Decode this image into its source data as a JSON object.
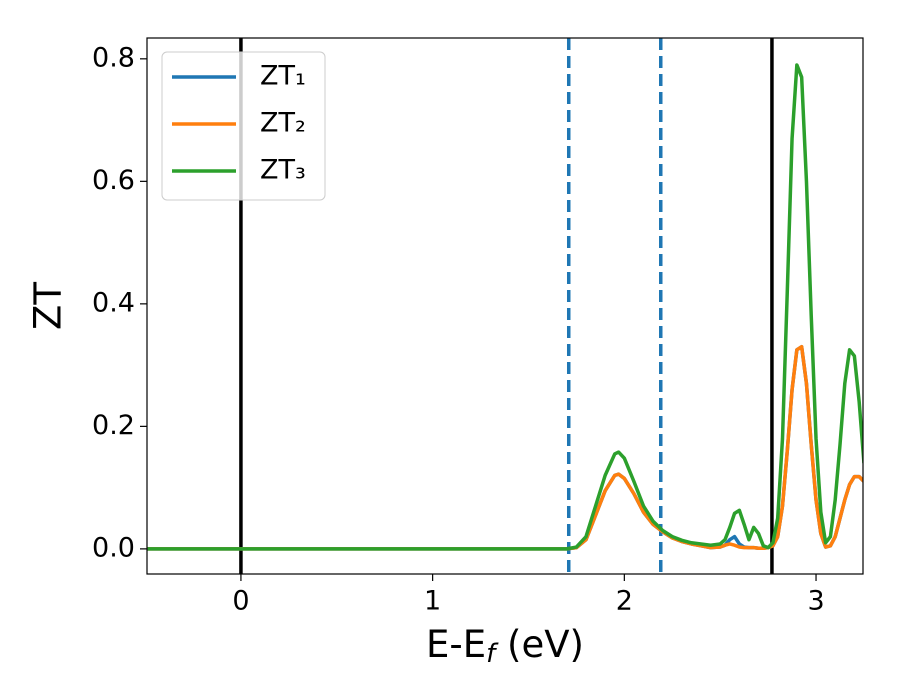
{
  "chart_data": {
    "type": "line",
    "xlabel": [
      "E-E",
      "f",
      " (eV)"
    ],
    "ylabel": "ZT",
    "xlim": [
      -0.49,
      3.245
    ],
    "ylim": [
      -0.041,
      0.834
    ],
    "xticks": [
      0,
      1,
      2,
      3
    ],
    "yticks": [
      {
        "value": 0,
        "label": "0.0"
      },
      0.2,
      0.4,
      0.6,
      0.8
    ],
    "legend": "upper left",
    "vlines": [
      {
        "x": 0,
        "color": "#000000",
        "style": "solid"
      },
      {
        "x": 1.71,
        "color": "#1f77b4",
        "style": "dashed"
      },
      {
        "x": 2.19,
        "color": "#1f77b4",
        "style": "dashed"
      },
      {
        "x": 2.77,
        "color": "#000000",
        "style": "solid"
      }
    ],
    "x": [
      -0.49,
      0,
      0.5,
      1,
      1.5,
      1.7,
      1.75,
      1.8,
      1.85,
      1.9,
      1.95,
      1.97,
      2.0,
      2.05,
      2.1,
      2.15,
      2.2,
      2.25,
      2.3,
      2.35,
      2.4,
      2.45,
      2.5,
      2.525,
      2.55,
      2.575,
      2.6,
      2.625,
      2.65,
      2.675,
      2.7,
      2.725,
      2.75,
      2.775,
      2.8,
      2.825,
      2.85,
      2.875,
      2.9,
      2.925,
      2.95,
      2.975,
      3.0,
      3.025,
      3.05,
      3.075,
      3.1,
      3.125,
      3.15,
      3.175,
      3.2,
      3.225,
      3.25
    ],
    "series": [
      {
        "name": "ZT₁",
        "color": "#1f77b4",
        "values": [
          0,
          0,
          0,
          0,
          0,
          0,
          0.002,
          0.015,
          0.055,
          0.095,
          0.12,
          0.122,
          0.115,
          0.09,
          0.06,
          0.04,
          0.028,
          0.018,
          0.012,
          0.008,
          0.005,
          0.002,
          0.003,
          0.006,
          0.015,
          0.02,
          0.008,
          0.003,
          0.002,
          0.002,
          0.001,
          0.001,
          0.002,
          0.005,
          0.02,
          0.07,
          0.16,
          0.26,
          0.325,
          0.33,
          0.27,
          0.17,
          0.08,
          0.025,
          0.003,
          0.005,
          0.02,
          0.05,
          0.08,
          0.105,
          0.118,
          0.118,
          0.11
        ]
      },
      {
        "name": "ZT₂",
        "color": "#ff7f0e",
        "values": [
          0,
          0,
          0,
          0,
          0,
          0,
          0.002,
          0.015,
          0.055,
          0.095,
          0.12,
          0.122,
          0.115,
          0.09,
          0.06,
          0.04,
          0.028,
          0.018,
          0.012,
          0.008,
          0.005,
          0.002,
          0.003,
          0.006,
          0.008,
          0.006,
          0.003,
          0.002,
          0.002,
          0.002,
          0.001,
          0.001,
          0.002,
          0.005,
          0.02,
          0.07,
          0.16,
          0.26,
          0.325,
          0.33,
          0.27,
          0.17,
          0.08,
          0.025,
          0.003,
          0.005,
          0.02,
          0.05,
          0.08,
          0.105,
          0.118,
          0.118,
          0.11
        ]
      },
      {
        "name": "ZT₃",
        "color": "#2ca02c",
        "values": [
          0,
          0,
          0,
          0,
          0,
          0,
          0.003,
          0.02,
          0.07,
          0.12,
          0.155,
          0.158,
          0.148,
          0.11,
          0.07,
          0.045,
          0.03,
          0.02,
          0.014,
          0.01,
          0.008,
          0.006,
          0.008,
          0.015,
          0.035,
          0.058,
          0.063,
          0.04,
          0.015,
          0.035,
          0.025,
          0.005,
          0.002,
          0.01,
          0.05,
          0.18,
          0.42,
          0.67,
          0.79,
          0.77,
          0.6,
          0.38,
          0.18,
          0.06,
          0.01,
          0.02,
          0.08,
          0.17,
          0.27,
          0.325,
          0.315,
          0.24,
          0.14
        ]
      }
    ]
  }
}
